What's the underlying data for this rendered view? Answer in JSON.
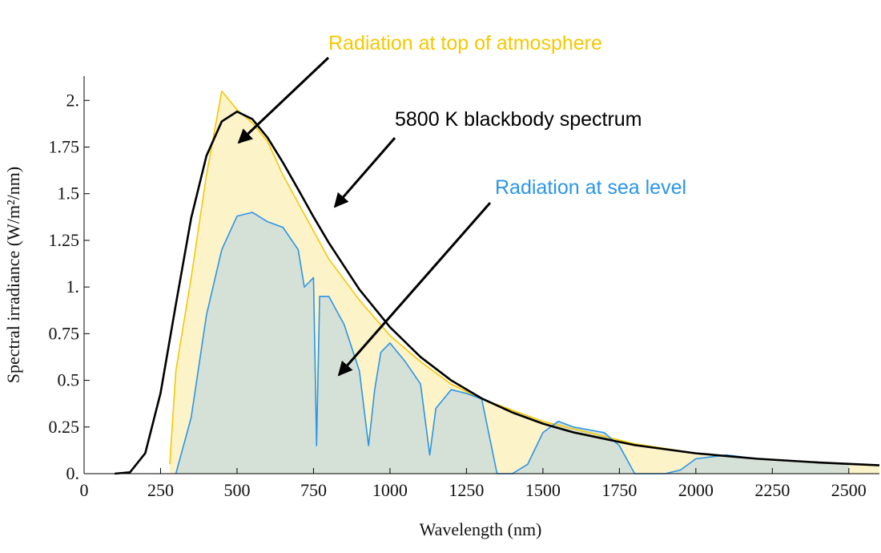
{
  "chart_data": {
    "type": "line",
    "xlabel": "Wavelength (nm)",
    "ylabel": "Spectral irradiance (W/m²/nm)",
    "xlim": [
      0,
      2600
    ],
    "ylim": [
      0,
      2.13
    ],
    "xticks": [
      0,
      250,
      500,
      750,
      1000,
      1250,
      1500,
      1750,
      2000,
      2250,
      2500
    ],
    "yticks": [
      {
        "value": 0,
        "label": "0."
      },
      0.25,
      0.5,
      0.75,
      {
        "value": 1,
        "label": "1."
      },
      1.25,
      1.5,
      1.75,
      {
        "value": 2,
        "label": "2."
      }
    ],
    "annotations": [
      "Radiation at top of atmosphere",
      "5800 K blackbody spectrum",
      "Radiation at sea level"
    ],
    "series": [
      {
        "name": "Radiation at top of atmosphere",
        "color": "#f5c800",
        "fill": "#fcf3c9",
        "x": [
          280,
          300,
          350,
          400,
          450,
          500,
          550,
          600,
          650,
          700,
          750,
          800,
          900,
          1000,
          1100,
          1200,
          1300,
          1400,
          1500,
          1600,
          1800,
          2000,
          2200,
          2400,
          2600
        ],
        "values": [
          0.05,
          0.55,
          1.05,
          1.6,
          2.05,
          1.95,
          1.88,
          1.78,
          1.6,
          1.45,
          1.3,
          1.15,
          0.93,
          0.74,
          0.6,
          0.48,
          0.4,
          0.34,
          0.28,
          0.24,
          0.16,
          0.11,
          0.08,
          0.06,
          0.045
        ]
      },
      {
        "name": "Radiation at sea level",
        "color": "#2b95e8",
        "fill": "#d5e0d6",
        "x": [
          300,
          350,
          400,
          450,
          500,
          550,
          600,
          650,
          700,
          720,
          750,
          760,
          770,
          800,
          850,
          900,
          930,
          950,
          970,
          1000,
          1050,
          1100,
          1130,
          1150,
          1200,
          1250,
          1300,
          1350,
          1400,
          1450,
          1500,
          1550,
          1600,
          1700,
          1750,
          1800,
          1900,
          1950,
          2000,
          2100,
          2200,
          2300,
          2400,
          2500
        ],
        "values": [
          0,
          0.3,
          0.85,
          1.2,
          1.38,
          1.4,
          1.35,
          1.32,
          1.2,
          1.0,
          1.05,
          0.15,
          0.95,
          0.95,
          0.8,
          0.55,
          0.15,
          0.45,
          0.65,
          0.7,
          0.6,
          0.48,
          0.1,
          0.35,
          0.45,
          0.43,
          0.4,
          0,
          0,
          0.05,
          0.22,
          0.28,
          0.25,
          0.22,
          0.15,
          0,
          0,
          0.02,
          0.08,
          0.1,
          0.08,
          0.07,
          0.06,
          0.05
        ]
      },
      {
        "name": "5800 K blackbody spectrum",
        "color": "#000000",
        "x": [
          100,
          150,
          200,
          250,
          300,
          350,
          400,
          450,
          500,
          550,
          600,
          650,
          700,
          750,
          800,
          900,
          1000,
          1100,
          1200,
          1300,
          1400,
          1500,
          1600,
          1800,
          2000,
          2200,
          2400,
          2600
        ],
        "values": [
          0,
          0.0075,
          0.11,
          0.432,
          0.907,
          1.369,
          1.703,
          1.887,
          1.94,
          1.9,
          1.8,
          1.667,
          1.523,
          1.376,
          1.237,
          0.987,
          0.785,
          0.625,
          0.5,
          0.403,
          0.328,
          0.268,
          0.221,
          0.153,
          0.109,
          0.08,
          0.06,
          0.045
        ]
      }
    ]
  }
}
